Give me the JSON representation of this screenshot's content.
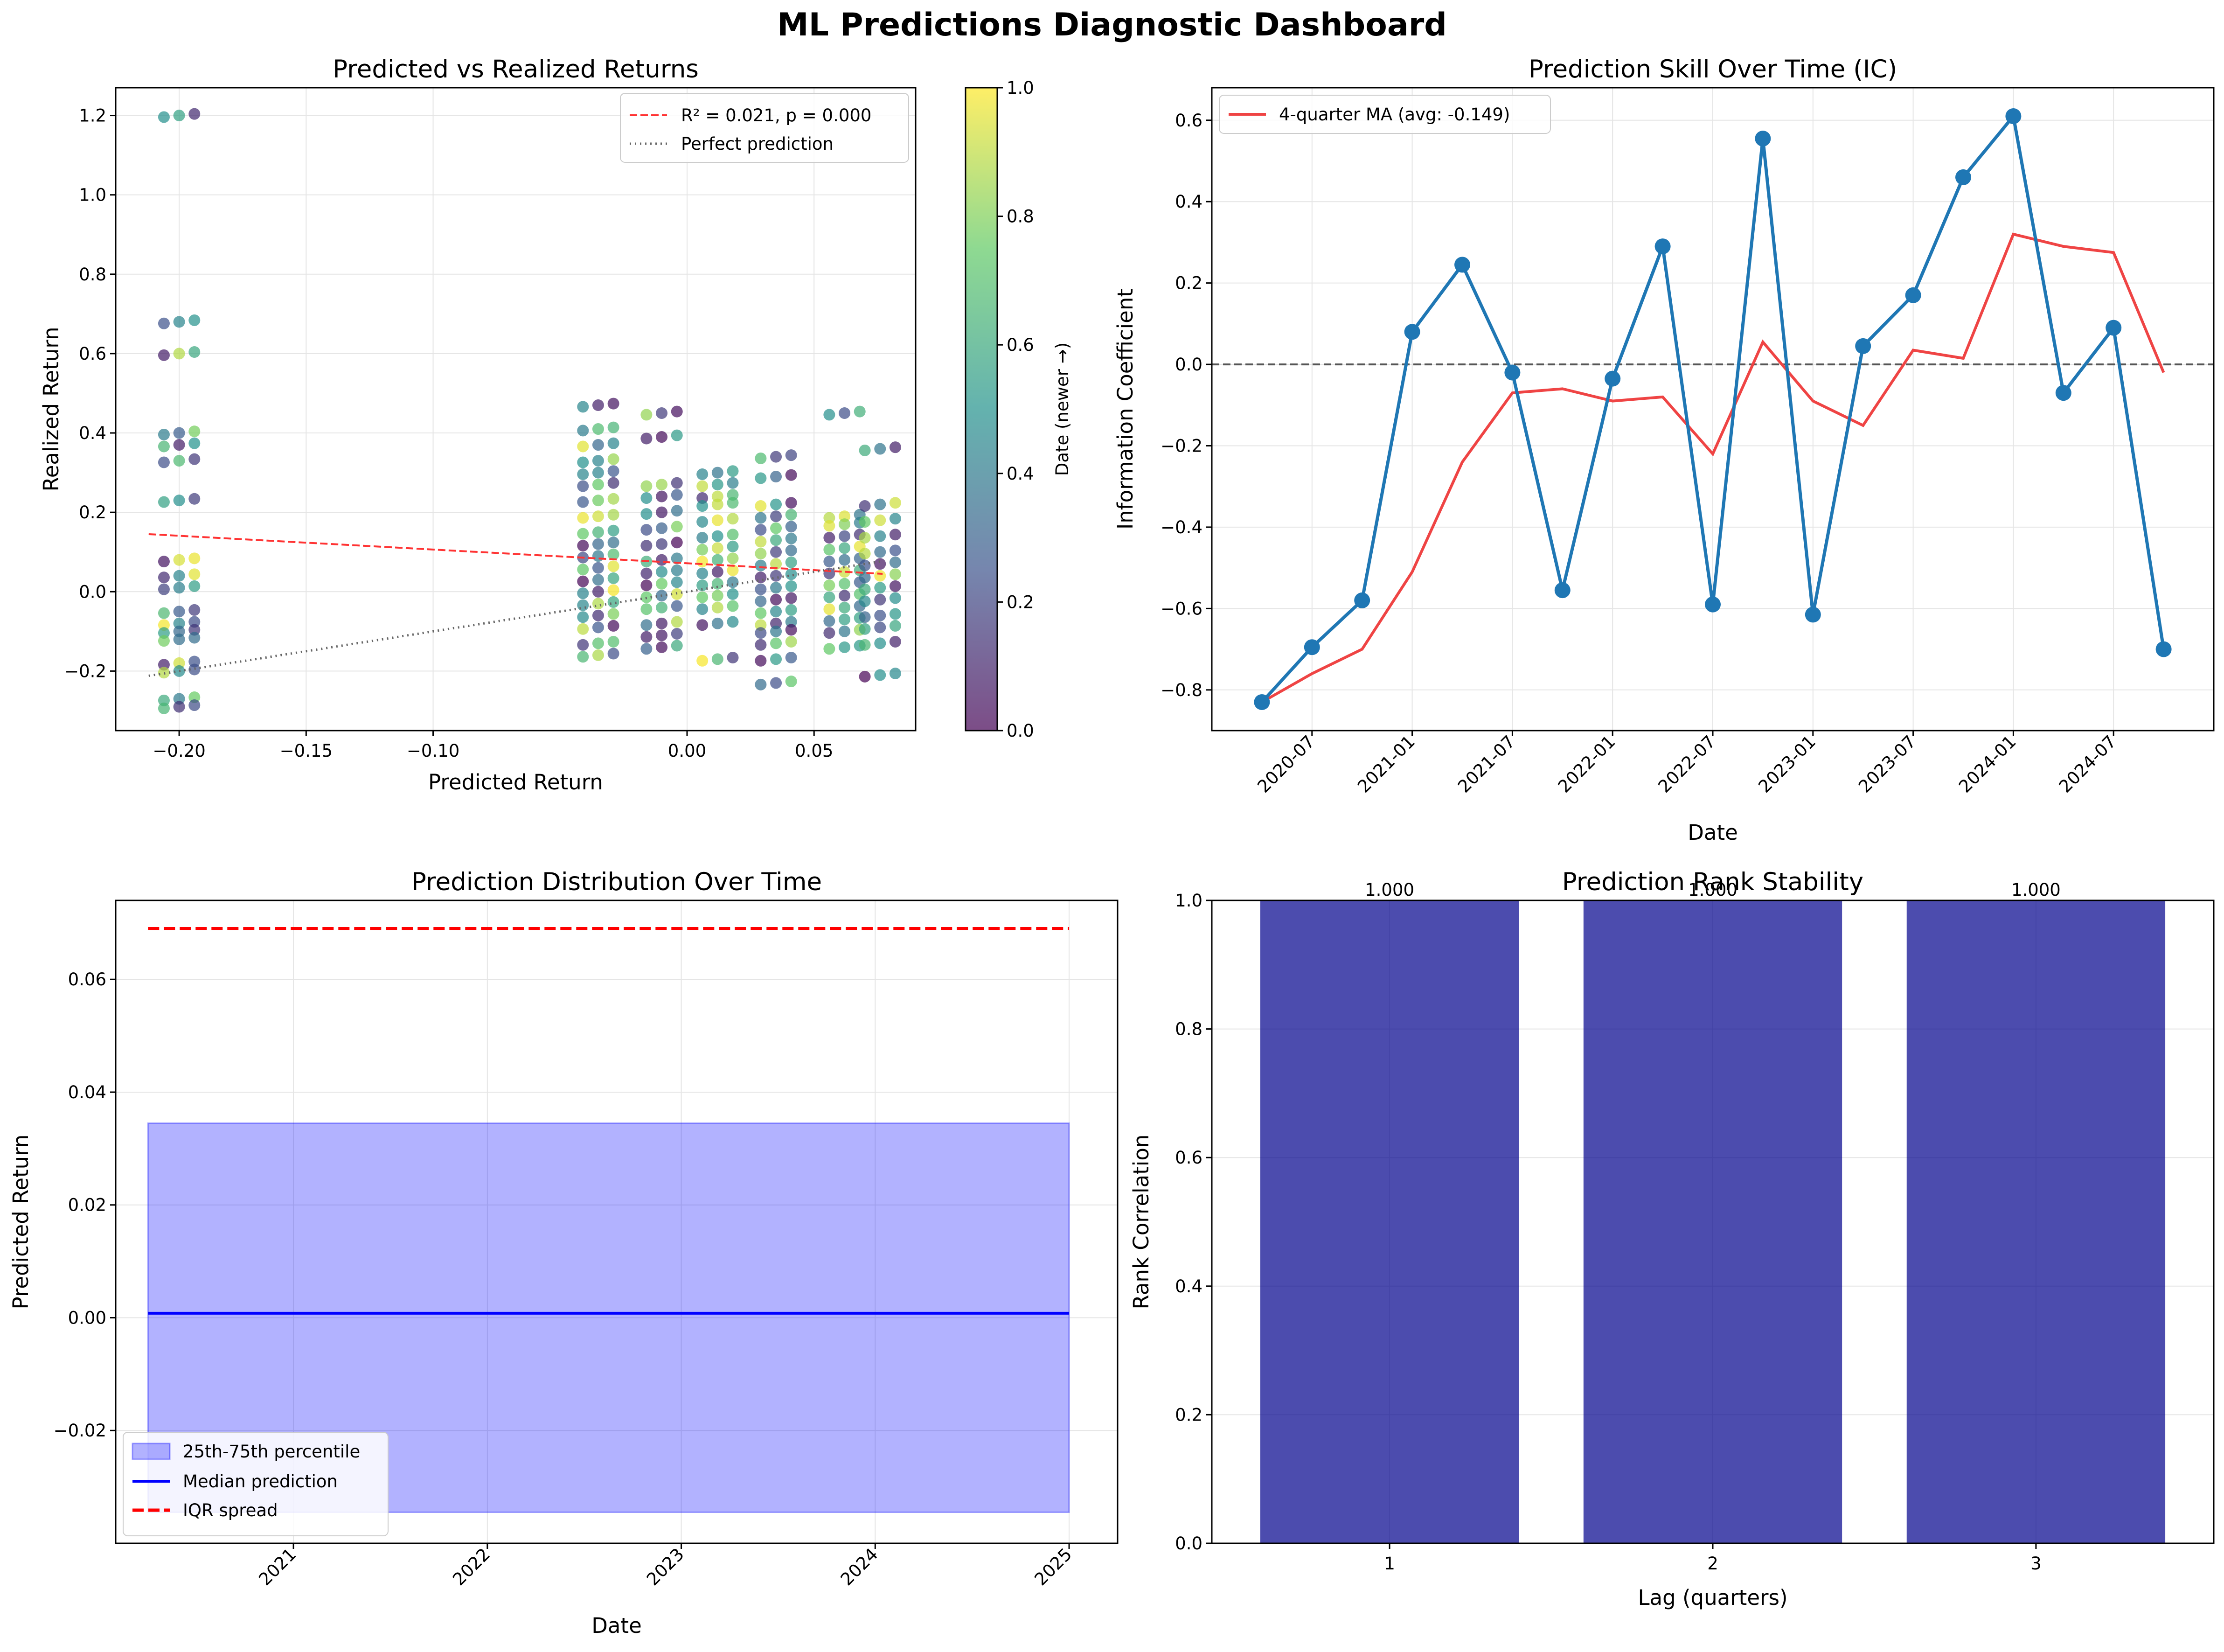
{
  "title": "ML Predictions Diagnostic Dashboard",
  "chart_data": [
    {
      "type": "scatter",
      "title": "Predicted vs Realized Returns",
      "xlabel": "Predicted Return",
      "ylabel": "Realized Return",
      "xlim": [
        -0.225,
        0.09
      ],
      "ylim": [
        -0.35,
        1.27
      ],
      "xticks": [
        -0.2,
        -0.15,
        -0.1,
        0.0,
        0.05
      ],
      "xtick_labels": [
        "−0.20",
        "−0.15",
        "−0.10",
        "0.00",
        "0.05"
      ],
      "yticks": [
        -0.2,
        0.0,
        0.2,
        0.4,
        0.6,
        0.8,
        1.0,
        1.2
      ],
      "ytick_labels": [
        "−0.2",
        "0.0",
        "0.2",
        "0.4",
        "0.6",
        "0.8",
        "1.0",
        "1.2"
      ],
      "grid": true,
      "legend_position": "top-right",
      "colormap": "viridis",
      "colorbar": {
        "label": "Date (newer →)",
        "range": [
          0.0,
          1.0
        ],
        "ticks": [
          0.0,
          0.2,
          0.4,
          0.6,
          0.8,
          1.0
        ],
        "tick_labels": [
          "0.0",
          "0.2",
          "0.4",
          "0.6",
          "0.8",
          "1.0"
        ]
      },
      "clusters": [
        {
          "x": -0.2,
          "y_values": [
            1.2,
            0.68,
            0.6,
            0.4,
            0.37,
            0.33,
            0.23,
            0.08,
            0.04,
            0.01,
            -0.05,
            -0.08,
            -0.1,
            -0.12,
            -0.18,
            -0.2,
            -0.27,
            -0.29
          ]
        },
        {
          "x": -0.035,
          "y_values": [
            0.47,
            0.41,
            0.37,
            0.33,
            0.3,
            0.27,
            0.23,
            0.19,
            0.15,
            0.12,
            0.09,
            0.06,
            0.03,
            0.0,
            -0.03,
            -0.06,
            -0.09,
            -0.13,
            -0.16
          ]
        },
        {
          "x": -0.01,
          "y_values": [
            0.45,
            0.39,
            0.27,
            0.24,
            0.2,
            0.16,
            0.12,
            0.08,
            0.05,
            0.02,
            -0.01,
            -0.04,
            -0.08,
            -0.11,
            -0.14
          ]
        },
        {
          "x": 0.012,
          "y_values": [
            0.3,
            0.27,
            0.24,
            0.22,
            0.18,
            0.14,
            0.11,
            0.08,
            0.05,
            0.02,
            -0.01,
            -0.04,
            -0.08,
            -0.17
          ]
        },
        {
          "x": 0.035,
          "y_values": [
            0.34,
            0.29,
            0.22,
            0.19,
            0.16,
            0.13,
            0.1,
            0.07,
            0.04,
            0.01,
            -0.02,
            -0.05,
            -0.08,
            -0.1,
            -0.13,
            -0.17,
            -0.23
          ]
        },
        {
          "x": 0.062,
          "y_values": [
            0.45,
            0.19,
            0.17,
            0.14,
            0.11,
            0.08,
            0.05,
            0.02,
            -0.01,
            -0.04,
            -0.07,
            -0.1,
            -0.14
          ]
        },
        {
          "x": 0.076,
          "y_values": [
            0.36,
            0.22,
            0.18,
            0.14,
            0.1,
            0.07,
            0.04,
            0.01,
            -0.02,
            -0.06,
            -0.09,
            -0.13,
            -0.21
          ]
        }
      ],
      "series": [
        {
          "name": "R² = 0.021, p = 0.000",
          "style": "dashed",
          "color": "#ff3333",
          "x": [
            -0.212,
            0.077
          ],
          "y": [
            0.145,
            0.045
          ]
        },
        {
          "name": "Perfect prediction",
          "style": "dotted",
          "color": "#666666",
          "x": [
            -0.212,
            0.077
          ],
          "y": [
            -0.212,
            0.077
          ]
        }
      ]
    },
    {
      "type": "line",
      "title": "Prediction Skill Over Time (IC)",
      "xlabel": "Date",
      "ylabel": "Information Coefficient",
      "ylim": [
        -0.9,
        0.68
      ],
      "xticks": [
        "2020-07",
        "2021-01",
        "2021-07",
        "2022-01",
        "2022-07",
        "2023-01",
        "2023-07",
        "2024-01",
        "2024-07"
      ],
      "yticks": [
        -0.8,
        -0.6,
        -0.4,
        -0.2,
        0.0,
        0.2,
        0.4,
        0.6
      ],
      "ytick_labels": [
        "−0.8",
        "−0.6",
        "−0.4",
        "−0.2",
        "0.0",
        "0.2",
        "0.4",
        "0.6"
      ],
      "grid": true,
      "legend_position": "top-left",
      "zero_line": true,
      "dates": [
        "2020-04",
        "2020-07",
        "2020-10",
        "2021-01",
        "2021-04",
        "2021-07",
        "2021-10",
        "2022-01",
        "2022-04",
        "2022-07",
        "2022-10",
        "2023-01",
        "2023-04",
        "2023-07",
        "2023-10",
        "2024-01",
        "2024-04",
        "2024-07",
        "2024-10"
      ],
      "series": [
        {
          "name": "",
          "color": "#1f77b4",
          "values": [
            -0.83,
            -0.695,
            -0.58,
            0.08,
            0.245,
            -0.02,
            -0.555,
            -0.035,
            0.29,
            -0.59,
            0.555,
            -0.615,
            0.045,
            0.17,
            0.46,
            0.61,
            -0.07,
            0.09,
            -0.7
          ]
        },
        {
          "name": "4-quarter MA (avg: -0.149)",
          "color": "#ef4444",
          "values": [
            -0.83,
            -0.76,
            -0.7,
            -0.51,
            -0.24,
            -0.07,
            -0.06,
            -0.09,
            -0.08,
            -0.22,
            0.055,
            -0.09,
            -0.15,
            0.035,
            0.015,
            0.32,
            0.29,
            0.275,
            -0.02
          ]
        }
      ]
    },
    {
      "type": "area",
      "title": "Prediction Distribution Over Time",
      "xlabel": "Date",
      "ylabel": "Predicted Return",
      "xlim": [
        "2020-02",
        "2025-04"
      ],
      "ylim": [
        -0.04,
        0.074
      ],
      "xticks": [
        "2021",
        "2022",
        "2023",
        "2024",
        "2025"
      ],
      "yticks": [
        -0.02,
        0.0,
        0.02,
        0.04,
        0.06
      ],
      "ytick_labels": [
        "−0.02",
        "0.00",
        "0.02",
        "0.04",
        "0.06"
      ],
      "grid": true,
      "legend_position": "bottom-left",
      "x": [
        "2020-04",
        "2025-01"
      ],
      "series": [
        {
          "name": "25th-75th percentile",
          "type": "band",
          "color": "#0000ff",
          "lower": [
            -0.0345,
            -0.0345
          ],
          "upper": [
            0.0345,
            0.0345
          ]
        },
        {
          "name": "Median prediction",
          "type": "line",
          "color": "#0000ff",
          "values": [
            0.0008,
            0.0008
          ]
        },
        {
          "name": "IQR spread",
          "type": "dashed",
          "color": "#ff0000",
          "values": [
            0.069,
            0.069
          ]
        }
      ]
    },
    {
      "type": "bar",
      "title": "Prediction Rank Stability",
      "xlabel": "Lag (quarters)",
      "ylabel": "Rank Correlation",
      "ylim": [
        0.0,
        1.0
      ],
      "yticks": [
        0.0,
        0.2,
        0.4,
        0.6,
        0.8,
        1.0
      ],
      "ytick_labels": [
        "0.0",
        "0.2",
        "0.4",
        "0.6",
        "0.8",
        "1.0"
      ],
      "grid": true,
      "bar_color": "#00008b",
      "categories": [
        "1",
        "2",
        "3"
      ],
      "values": [
        1.0,
        1.0,
        1.0
      ],
      "value_labels": [
        "1.000",
        "1.000",
        "1.000"
      ]
    }
  ]
}
